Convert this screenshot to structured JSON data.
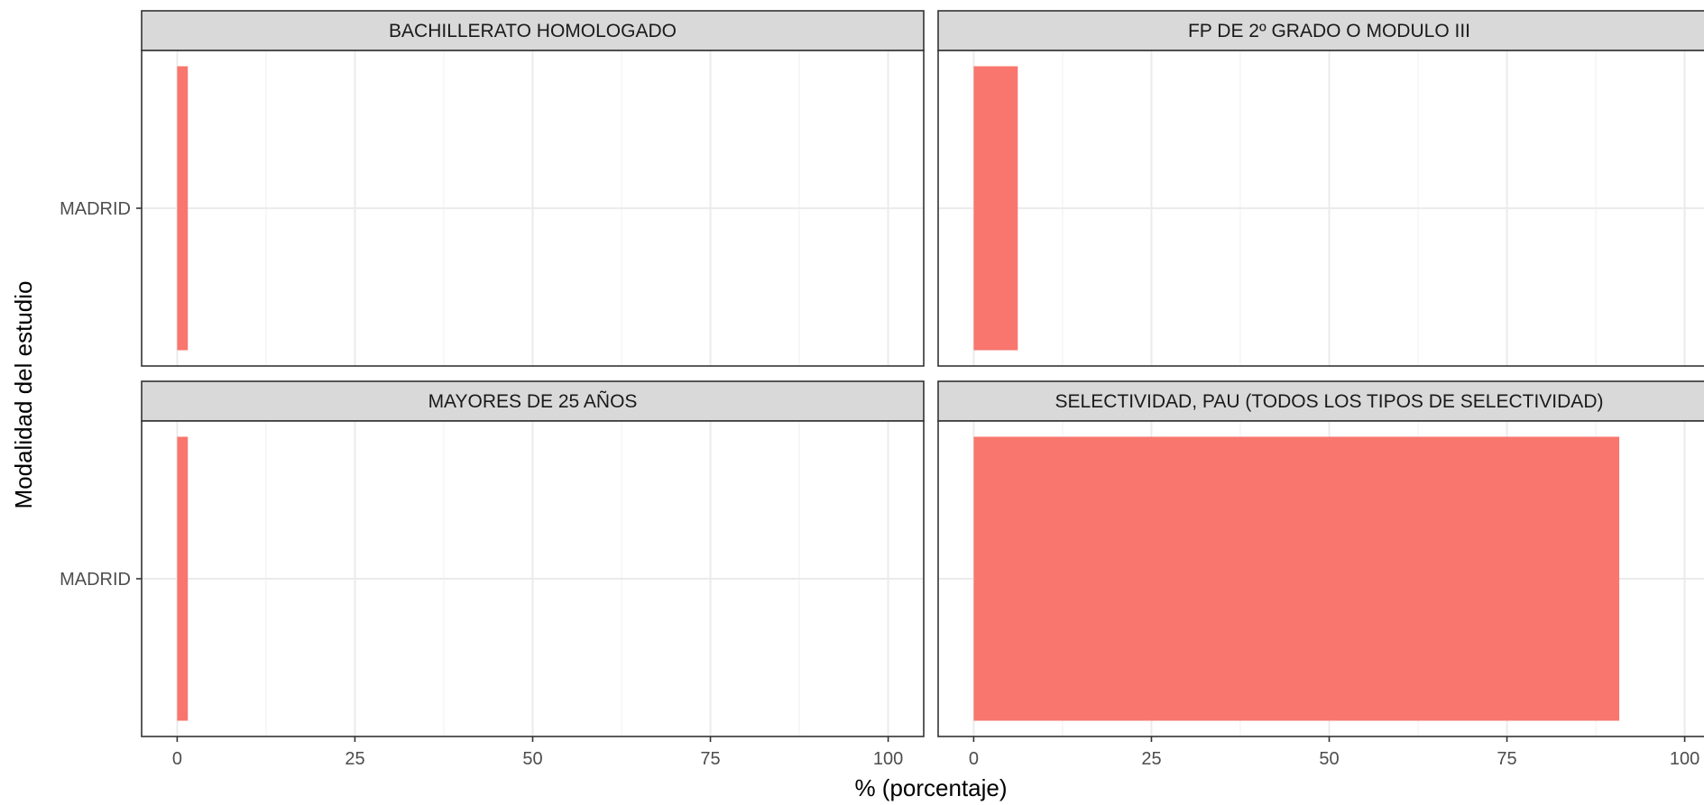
{
  "chart_data": {
    "type": "bar",
    "orientation": "horizontal",
    "xlabel": "% (porcentaje)",
    "ylabel": "Modalidad del estudio",
    "xlim": [
      0,
      100
    ],
    "xticks": [
      "0",
      "25",
      "50",
      "75",
      "100"
    ],
    "grid": true,
    "bar_color": "#F8766D",
    "facets": [
      {
        "title": "BACHILLERATO HOMOLOGADO",
        "categories": [
          "MADRID"
        ],
        "values": [
          1.5
        ]
      },
      {
        "title": "FP DE 2º GRADO O MODULO III",
        "categories": [
          "MADRID"
        ],
        "values": [
          6.2
        ]
      },
      {
        "title": "MAYORES DE 25 AÑOS",
        "categories": [
          "MADRID"
        ],
        "values": [
          1.5
        ]
      },
      {
        "title": "SELECTIVIDAD, PAU (TODOS LOS TIPOS DE SELECTIVIDAD)",
        "categories": [
          "MADRID"
        ],
        "values": [
          90.8
        ]
      }
    ]
  }
}
